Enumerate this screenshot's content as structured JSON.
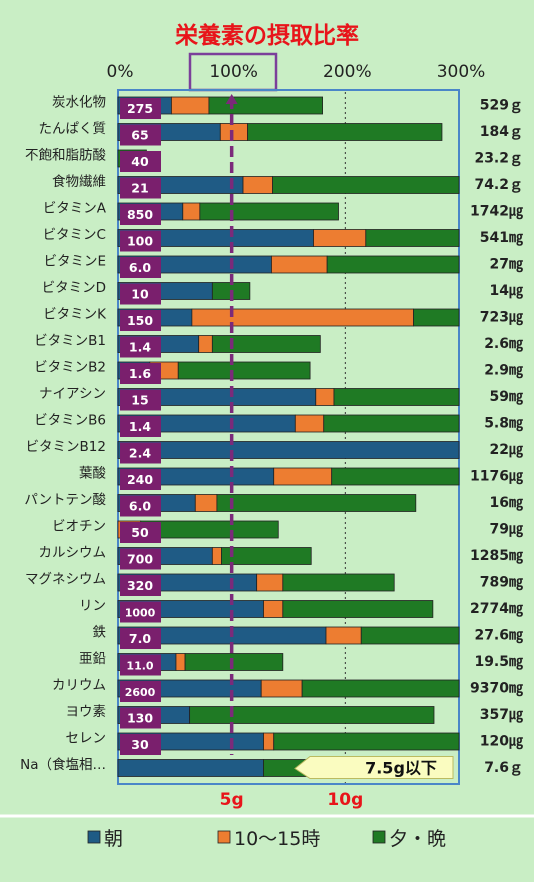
{
  "chart_data": {
    "type": "bar",
    "stacked": true,
    "orientation": "horizontal",
    "title": "栄養素の摂取比率",
    "x_ticks": [
      "0%",
      "100%",
      "200%",
      "300%"
    ],
    "xlim": [
      0,
      300
    ],
    "highlight_tick": "100%",
    "grid": "vertical dashed at 200%",
    "categories": [
      "炭水化物",
      "たんぱく質",
      "不飽和脂肪酸",
      "食物繊維",
      "ビタミンA",
      "ビタミンC",
      "ビタミンE",
      "ビタミンD",
      "ビタミンK",
      "ビタミンB1",
      "ビタミンB2",
      "ナイアシン",
      "ビタミンB6",
      "ビタミンB12",
      "葉酸",
      "パントテン酸",
      "ビオチン",
      "カルシウム",
      "マグネシウム",
      "リン",
      "鉄",
      "亜鉛",
      "カリウム",
      "ヨウ素",
      "セレン",
      "Na（食塩相…"
    ],
    "targets": [
      "275",
      "65",
      "40",
      "21",
      "850",
      "100",
      "6.0",
      "10",
      "150",
      "1.4",
      "1.6",
      "15",
      "1.4",
      "2.4",
      "240",
      "6.0",
      "50",
      "700",
      "320",
      "1000",
      "7.0",
      "11.0",
      "2600",
      "130",
      "30",
      ""
    ],
    "totals": [
      "529ｇ",
      "184ｇ",
      "23.2ｇ",
      "74.2ｇ",
      "1742㎍",
      "541㎎",
      "27㎎",
      "14㎍",
      "723㎍",
      "2.6㎎",
      "2.9㎎",
      "59㎎",
      "5.8㎎",
      "22㎍",
      "1176㎍",
      "16㎎",
      "79㎍",
      "1285㎎",
      "789㎎",
      "2774㎎",
      "27.6㎎",
      "19.5㎎",
      "9370㎎",
      "357㎍",
      "120㎍",
      "7.6ｇ"
    ],
    "series": [
      {
        "name": "朝",
        "color": "#1f5b85",
        "values": [
          47,
          90,
          0,
          110,
          57,
          172,
          135,
          83,
          65,
          71,
          28,
          174,
          156,
          300,
          137,
          68,
          0,
          83,
          122,
          128,
          183,
          51,
          126,
          63,
          128,
          128
        ]
      },
      {
        "name": "10～15時",
        "color": "#ed7d31",
        "values": [
          33,
          24,
          0,
          26,
          15,
          46,
          49,
          0,
          195,
          12,
          25,
          16,
          25,
          0,
          51,
          19,
          20,
          8,
          23,
          17,
          31,
          8,
          36,
          0,
          9,
          0
        ]
      },
      {
        "name": "夕・晩",
        "color": "#1f7a24",
        "values": [
          100,
          171,
          25,
          164,
          122,
          86,
          119,
          33,
          46,
          95,
          116,
          111,
          122,
          0,
          114,
          175,
          121,
          79,
          98,
          132,
          91,
          86,
          141,
          215,
          168,
          50
        ]
      }
    ],
    "na_annotation": "7.5g以下",
    "bottom_ticks": [
      "5g",
      "10g"
    ],
    "legend_position": "bottom"
  }
}
